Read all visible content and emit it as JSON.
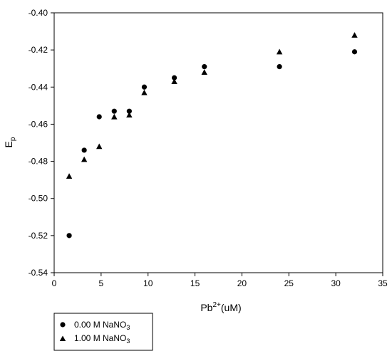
{
  "chart_data": {
    "type": "scatter",
    "x_axis": {
      "label_main": "Pb",
      "label_sup": "2+",
      "label_rest": "(uM)",
      "range": [
        0,
        35
      ],
      "ticks": [
        0,
        5,
        10,
        15,
        20,
        25,
        30,
        35
      ],
      "tick_labels": [
        "0",
        "5",
        "10",
        "15",
        "20",
        "25",
        "30",
        "35"
      ]
    },
    "y_axis": {
      "label_main": "E",
      "label_sub": "p",
      "range": [
        -0.54,
        -0.4
      ],
      "ticks": [
        -0.54,
        -0.52,
        -0.5,
        -0.48,
        -0.46,
        -0.44,
        -0.42,
        -0.4
      ],
      "tick_labels": [
        "-0.54",
        "-0.52",
        "-0.50",
        "-0.48",
        "-0.46",
        "-0.44",
        "-0.42",
        "-0.40"
      ]
    },
    "grid": false,
    "legend_position": "bottom-left, below plot",
    "series": [
      {
        "name_prefix": "0.00 M NaNO",
        "name_sub": "3",
        "marker": "circle",
        "color": "#000000",
        "points": [
          {
            "x": 1.6,
            "y": -0.52
          },
          {
            "x": 3.2,
            "y": -0.474
          },
          {
            "x": 4.8,
            "y": -0.456
          },
          {
            "x": 6.4,
            "y": -0.453
          },
          {
            "x": 8.0,
            "y": -0.453
          },
          {
            "x": 9.6,
            "y": -0.44
          },
          {
            "x": 12.8,
            "y": -0.435
          },
          {
            "x": 16.0,
            "y": -0.429
          },
          {
            "x": 24.0,
            "y": -0.429
          },
          {
            "x": 32.0,
            "y": -0.421
          }
        ]
      },
      {
        "name_prefix": "1.00 M NaNO",
        "name_sub": "3",
        "marker": "triangle",
        "color": "#000000",
        "points": [
          {
            "x": 1.6,
            "y": -0.488
          },
          {
            "x": 3.2,
            "y": -0.479
          },
          {
            "x": 4.8,
            "y": -0.472
          },
          {
            "x": 6.4,
            "y": -0.456
          },
          {
            "x": 8.0,
            "y": -0.455
          },
          {
            "x": 9.6,
            "y": -0.443
          },
          {
            "x": 12.8,
            "y": -0.437
          },
          {
            "x": 16.0,
            "y": -0.432
          },
          {
            "x": 24.0,
            "y": -0.421
          },
          {
            "x": 32.0,
            "y": -0.412
          }
        ]
      }
    ]
  }
}
